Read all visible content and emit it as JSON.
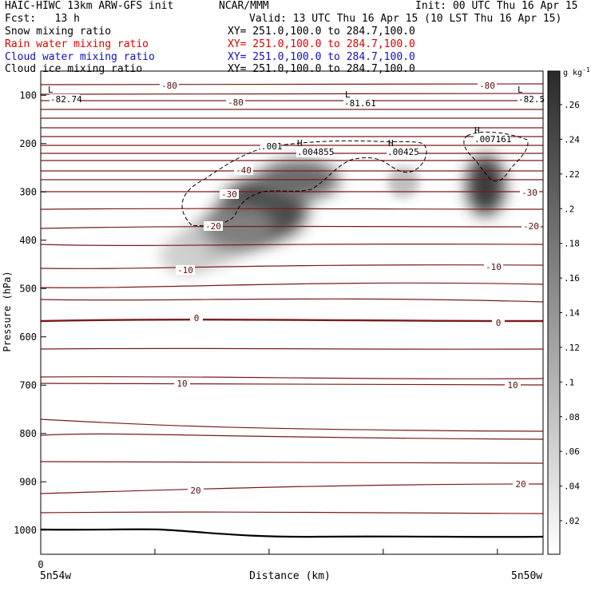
{
  "header": {
    "line1_left": "HAIC-HIWC 13km ARW-GFS init",
    "line1_mid": "NCAR/MMM",
    "line1_right": "Init: 00 UTC Thu 16 Apr 15",
    "line2_left": "Fcst:   13 h",
    "line2_right": "Valid: 13 UTC Thu 16 Apr 15 (10 LST Thu 16 Apr 15)",
    "fields": [
      {
        "name": "Snow mixing ratio",
        "xy": "XY= 251.0,100.0 to 284.7,100.0",
        "color": "#000000"
      },
      {
        "name": "Rain water mixing ratio",
        "xy": "XY= 251.0,100.0 to 284.7,100.0",
        "color": "#e00000"
      },
      {
        "name": "Cloud water mixing ratio",
        "xy": "XY= 251.0,100.0 to 284.7,100.0",
        "color": "#1010c0"
      },
      {
        "name": "Cloud ice mixing ratio",
        "xy": "XY= 251.0,100.0 to 284.7,100.0",
        "color": "#000000"
      }
    ]
  },
  "chart_data": {
    "type": "contour",
    "xlabel": "Distance (km)",
    "ylabel": "Pressure (hPa)",
    "x_start_label": "5n54w",
    "x_end_label": "5n50w",
    "x_origin_tick": "0",
    "y_ticks": [
      100,
      200,
      300,
      400,
      500,
      600,
      700,
      800,
      900,
      1000
    ],
    "ylim": [
      1050,
      50
    ],
    "colorbar": {
      "unit": "g kg",
      "unit_exp": "-1",
      "ticks": [
        ".02",
        ".04",
        ".06",
        ".08",
        ".1",
        ".12",
        ".14",
        ".16",
        ".18",
        ".2",
        ".22",
        ".24",
        ".26"
      ]
    },
    "temperature_labels": [
      "-80",
      "-80",
      "-80",
      "-40",
      "-30",
      "-30",
      "-20",
      "-20",
      "-10",
      "-10",
      "0",
      "0",
      "10",
      "10",
      "20",
      "20"
    ],
    "extrema": [
      {
        "kind": "L",
        "value": "-82.74"
      },
      {
        "kind": "L",
        "value": "-81.61"
      },
      {
        "kind": "L",
        "value": "-82.5"
      },
      {
        "kind": "H",
        "value": ".004855"
      },
      {
        "kind": "H",
        "value": ".00425"
      },
      {
        "kind": "H",
        "value": ".007161"
      }
    ],
    "ice_contour_label": ".001",
    "line_color": "#7a1a1a"
  }
}
